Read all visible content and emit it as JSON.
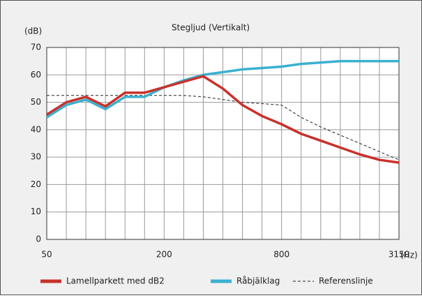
{
  "chart_data": {
    "type": "line",
    "title": "Stegljud (Vertikalt)",
    "y_label": "(dB)",
    "x_label": "(Hz)",
    "categories": [
      "50",
      null,
      null,
      null,
      null,
      null,
      "200",
      null,
      null,
      null,
      null,
      null,
      "800",
      null,
      null,
      null,
      null,
      null,
      "3150"
    ],
    "series": [
      {
        "name": "Lamellparkett med dB2",
        "color": "#c8312b",
        "values": [
          45.5,
          50,
          52,
          48.5,
          53.5,
          53.5,
          55.5,
          57.5,
          59.5,
          55,
          49,
          45,
          42,
          38.5,
          36,
          33.5,
          31,
          29,
          28
        ]
      },
      {
        "name": "Råbjälklag",
        "color": "#3bb0d0",
        "values": [
          44.5,
          49,
          51,
          47.5,
          52,
          52,
          55.5,
          58,
          60,
          61,
          62,
          62.5,
          63,
          64,
          64.5,
          65,
          65,
          65,
          65
        ]
      },
      {
        "name": "Referenslinje",
        "color": "#222222",
        "dashed": true,
        "values": [
          52.5,
          52.5,
          52.5,
          52.5,
          52.5,
          52.5,
          52.5,
          52.5,
          52,
          51,
          50,
          49.5,
          49,
          44.5,
          41,
          38,
          35,
          32,
          29
        ]
      }
    ],
    "ylim": [
      0,
      70
    ],
    "yticks": [
      0,
      10,
      20,
      30,
      40,
      50,
      60,
      70
    ],
    "grid": true
  }
}
